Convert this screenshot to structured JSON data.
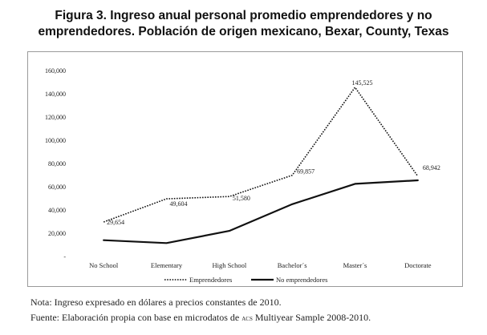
{
  "figure": {
    "title_line1": "Figura 3. Ingreso anual personal promedio emprendedores y no",
    "title_line2": "emprendedores. Población de origen mexicano, Bexar, County, Texas"
  },
  "chart_data": {
    "type": "line",
    "categories": [
      "No School",
      "Elementary",
      "High School",
      "Bachelor´s",
      "Master´s",
      "Doctorate"
    ],
    "series": [
      {
        "name": "Emprendedores",
        "style": "dotted",
        "values": [
          29654,
          49604,
          51580,
          69857,
          145525,
          68942
        ],
        "labels": [
          "29,654",
          "49,604",
          "51,580",
          "69,857",
          "145,525",
          "68,942"
        ]
      },
      {
        "name": "No emprendedores",
        "style": "solid",
        "values": [
          14000,
          11500,
          22000,
          45000,
          62500,
          65500
        ],
        "labels": []
      }
    ],
    "y_ticks": [
      0,
      20000,
      40000,
      60000,
      80000,
      100000,
      120000,
      140000,
      160000
    ],
    "y_tick_labels": [
      "-",
      "20,000",
      "40,000",
      "60,000",
      "80,000",
      "100,000",
      "120,000",
      "140,000",
      "160,000"
    ],
    "ylim": [
      0,
      160000
    ],
    "title": "Figura 3. Ingreso anual personal promedio emprendedores y no emprendedores. Población de origen mexicano, Bexar, County, Texas",
    "xlabel": "",
    "ylabel": "",
    "grid": false,
    "legend": "bottom-center",
    "line_color": "#111111"
  },
  "notes": {
    "nota": "Nota: Ingreso expresado en dólares a precios constantes de 2010.",
    "fuente_prefix": "Fuente: Elaboración propia con base en microdatos de ",
    "fuente_acronym": "ACS",
    "fuente_suffix": " Multiyear Sample 2008-2010."
  }
}
